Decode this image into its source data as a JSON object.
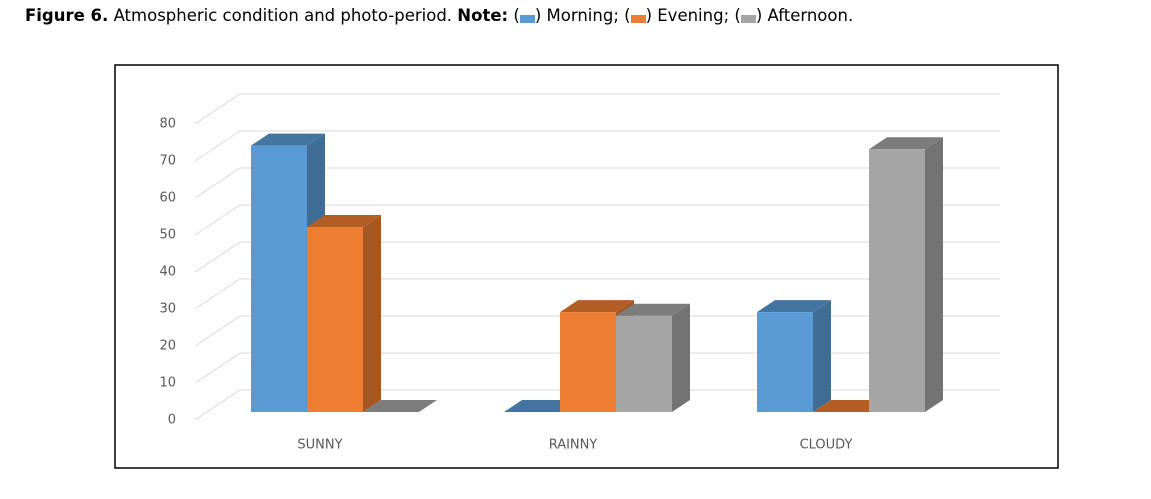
{
  "caption": {
    "label": "Figure 6.",
    "text": "Atmospheric condition and photo-period.",
    "note": "Note:",
    "open": "(",
    "close": ")",
    "punctuation": [
      ";",
      ";",
      "."
    ]
  },
  "chart_data": {
    "type": "bar3d",
    "categories": [
      "SUNNY",
      "RAINNY",
      "CLOUDY"
    ],
    "series": [
      {
        "name": "Morning",
        "color": "#5b9bd5",
        "values": [
          72,
          0,
          27
        ]
      },
      {
        "name": "Evening",
        "color": "#ed7d31",
        "values": [
          50,
          27,
          0
        ]
      },
      {
        "name": "Afternoon",
        "color": "#a5a5a5",
        "values": [
          0,
          26,
          71
        ]
      }
    ],
    "ylim": [
      0,
      80
    ],
    "yticks": [
      0,
      10,
      20,
      30,
      40,
      50,
      60,
      70,
      80
    ],
    "grid": true
  }
}
